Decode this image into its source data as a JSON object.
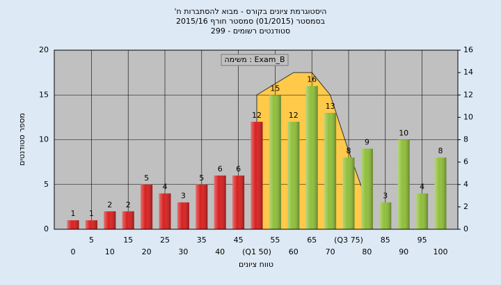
{
  "chart_data": {
    "type": "bar",
    "title": [
      "'היסטוגרמת ציונים בקורס - מבוא להסתברות ח",
      "בסמסטר  (01/2015)  סמסטר חורף 2015/16",
      "סטודנטים רשומים - 299"
    ],
    "annotation": "משימה : Exam_B",
    "x_label": "טווח ציונים",
    "y_label": "מספר סטודנטים",
    "categories": [
      "0",
      "5",
      "10",
      "15",
      "20",
      "25",
      "30",
      "35",
      "40",
      "45",
      "(Q1 50)",
      "55",
      "60",
      "65",
      "70",
      "(Q3 75)",
      "80",
      "85",
      "90",
      "95",
      "100"
    ],
    "values": [
      1,
      1,
      2,
      2,
      5,
      4,
      3,
      5,
      6,
      6,
      12,
      15,
      12,
      16,
      13,
      8,
      9,
      3,
      10,
      4,
      8
    ],
    "colors": [
      "#d92020",
      "#d92020",
      "#d92020",
      "#d92020",
      "#d92020",
      "#d92020",
      "#d92020",
      "#d92020",
      "#d92020",
      "#d92020",
      "#d92020",
      "#8fbf3a",
      "#8fbf3a",
      "#8fbf3a",
      "#8fbf3a",
      "#8fbf3a",
      "#8fbf3a",
      "#8fbf3a",
      "#8fbf3a",
      "#8fbf3a",
      "#8fbf3a"
    ],
    "area": {
      "axis": "y2",
      "color": "#ffc94a",
      "values": [
        null,
        null,
        null,
        null,
        null,
        null,
        null,
        null,
        null,
        null,
        12,
        13,
        14,
        14,
        12,
        7,
        2.4,
        null,
        null,
        null,
        null
      ]
    },
    "ylim": [
      0,
      20
    ],
    "yticks": [
      0,
      5,
      10,
      15,
      20
    ],
    "y2lim": [
      0,
      16
    ],
    "y2ticks": [
      0,
      2,
      4,
      6,
      8,
      10,
      12,
      14,
      16
    ],
    "grid": true
  }
}
